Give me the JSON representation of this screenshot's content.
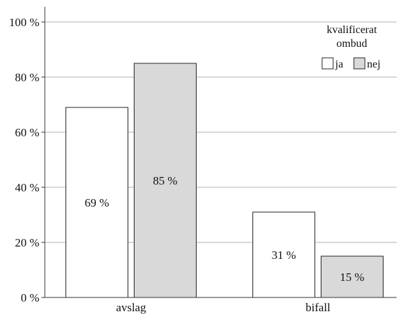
{
  "chart_data": {
    "type": "bar",
    "title": "",
    "xlabel": "",
    "ylabel": "",
    "categories": [
      "avslag",
      "bifall"
    ],
    "series": [
      {
        "name": "ja",
        "values": [
          69,
          31
        ],
        "labels": [
          "69 %",
          "31 %"
        ],
        "color": "#ffffff"
      },
      {
        "name": "nej",
        "values": [
          85,
          15
        ],
        "labels": [
          "85 %",
          "15 %"
        ],
        "color": "#d9d9d9"
      }
    ],
    "ylim": [
      0,
      100
    ],
    "yticks": [
      0,
      20,
      40,
      60,
      80,
      100
    ],
    "ytick_labels": [
      "0 %",
      "20 %",
      "40 %",
      "60 %",
      "80 %",
      "100 %"
    ],
    "grid": true,
    "legend": {
      "title_lines": [
        "kvalificerat",
        "ombud"
      ],
      "placement": "top-right"
    },
    "colors": {
      "grid": "#b3b3b3",
      "bar_stroke": "#222222",
      "axis": "#333333"
    }
  }
}
